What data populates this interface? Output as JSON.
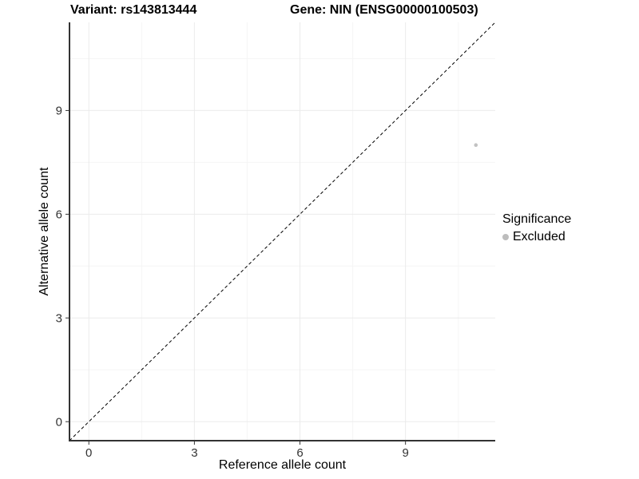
{
  "chart_data": {
    "type": "scatter",
    "title_left": "Variant: rs143813444",
    "title_right": "Gene: NIN (ENSG00000100503)",
    "xlabel": "Reference allele count",
    "ylabel": "Alternative allele count",
    "xlim": [
      -0.55,
      11.55
    ],
    "ylim": [
      -0.55,
      11.55
    ],
    "xticks": [
      0,
      3,
      6,
      9
    ],
    "yticks": [
      0,
      3,
      6,
      9
    ],
    "x_minor_ticks": [
      1.5,
      4.5,
      7.5,
      10.5
    ],
    "y_minor_ticks": [
      1.5,
      4.5,
      7.5,
      10.5
    ],
    "grid": "major and minor gridlines, white panel background",
    "identity_line": {
      "slope": 1,
      "intercept": 0,
      "style": "dashed",
      "color": "#000000"
    },
    "series": [
      {
        "name": "Excluded",
        "color": "#c2c2c2",
        "point_radius": 2.3,
        "points": [
          {
            "x": 11,
            "y": 8
          }
        ]
      }
    ],
    "legend": {
      "position": "right",
      "title": "Significance",
      "items": [
        {
          "label": "Excluded",
          "color": "#bdbdbd"
        }
      ]
    },
    "colors": {
      "background": "#ffffff",
      "axis_line": "#333333",
      "tick_label": "#333333",
      "grid_major": "#ebebeb",
      "grid_minor": "#f5f5f5"
    }
  }
}
